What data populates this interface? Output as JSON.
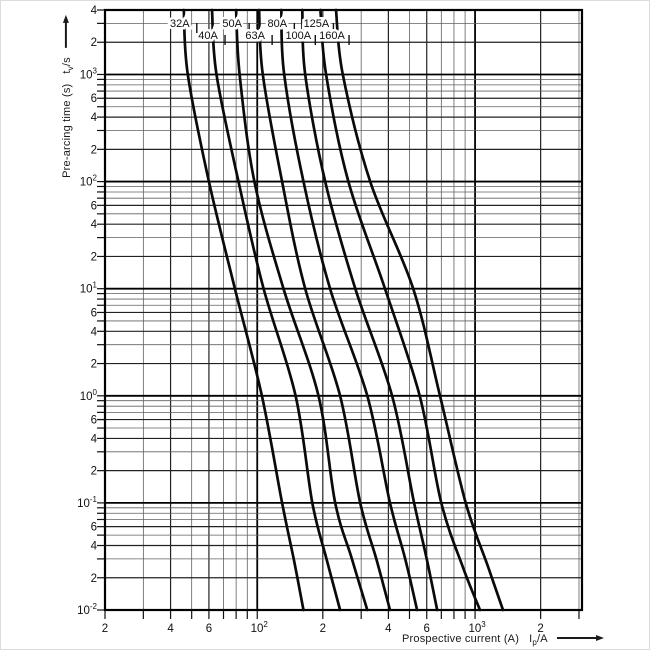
{
  "page": {
    "background": "#ffffff"
  },
  "chart_data": {
    "type": "line",
    "title": "",
    "scale": "log-log",
    "grid": {
      "major_color": "#000000",
      "mid_color": "#222222",
      "minor_color": "#606060"
    },
    "curve_color": "#0a0a0a",
    "x_axis": {
      "title": "Prospective current (A)",
      "symbol": "I",
      "symbol_sub": "p",
      "unit": "/A",
      "min": 20,
      "max": 3097,
      "ticks": [
        {
          "v": 20,
          "t": "2"
        },
        {
          "v": 40,
          "t": "4"
        },
        {
          "v": 60,
          "t": "6"
        },
        {
          "v": 100,
          "t": "10",
          "exp": "2"
        },
        {
          "v": 200,
          "t": "2"
        },
        {
          "v": 400,
          "t": "4"
        },
        {
          "v": 600,
          "t": "6"
        },
        {
          "v": 1000,
          "t": "10",
          "exp": "3"
        },
        {
          "v": 2000,
          "t": "2"
        }
      ]
    },
    "y_axis": {
      "title": "Pre-arcing time (s)",
      "symbol": "t",
      "symbol_sub": "v",
      "unit": "/s",
      "min": 0.01,
      "max": 4000,
      "ticks": [
        {
          "v": 4000,
          "t": "4"
        },
        {
          "v": 2000,
          "t": "2"
        },
        {
          "v": 1000,
          "t": "10",
          "exp": "3"
        },
        {
          "v": 600,
          "t": "6"
        },
        {
          "v": 400,
          "t": "4"
        },
        {
          "v": 200,
          "t": "2"
        },
        {
          "v": 100,
          "t": "10",
          "exp": "2"
        },
        {
          "v": 60,
          "t": "6"
        },
        {
          "v": 40,
          "t": "4"
        },
        {
          "v": 20,
          "t": "2"
        },
        {
          "v": 10,
          "t": "10",
          "exp": "1"
        },
        {
          "v": 6,
          "t": "6"
        },
        {
          "v": 4,
          "t": "4"
        },
        {
          "v": 2,
          "t": "2"
        },
        {
          "v": 1,
          "t": "10",
          "exp": "0"
        },
        {
          "v": 0.6,
          "t": "6"
        },
        {
          "v": 0.4,
          "t": "4"
        },
        {
          "v": 0.2,
          "t": "2"
        },
        {
          "v": 0.1,
          "t": "10",
          "exp": "-1"
        },
        {
          "v": 0.06,
          "t": "6"
        },
        {
          "v": 0.04,
          "t": "4"
        },
        {
          "v": 0.02,
          "t": "2"
        },
        {
          "v": 0.01,
          "t": "10",
          "exp": "-2"
        }
      ]
    },
    "series": [
      {
        "name": "32A",
        "points": [
          [
            46,
            4000
          ],
          [
            48,
            1000
          ],
          [
            60,
            100
          ],
          [
            79,
            10
          ],
          [
            105,
            1
          ],
          [
            130,
            0.1
          ],
          [
            147,
            0.03
          ],
          [
            163,
            0.01
          ]
        ]
      },
      {
        "name": "40A",
        "points": [
          [
            62,
            4000
          ],
          [
            65,
            1000
          ],
          [
            82,
            100
          ],
          [
            107,
            10
          ],
          [
            150,
            1
          ],
          [
            179,
            0.1
          ],
          [
            208,
            0.03
          ],
          [
            240,
            0.01
          ]
        ]
      },
      {
        "name": "50A",
        "points": [
          [
            80,
            4000
          ],
          [
            83,
            1000
          ],
          [
            97,
            100
          ],
          [
            132,
            10
          ],
          [
            191,
            1
          ],
          [
            228,
            0.1
          ],
          [
            272,
            0.03
          ],
          [
            320,
            0.01
          ]
        ]
      },
      {
        "name": "63A",
        "points": [
          [
            102,
            4000
          ],
          [
            106,
            1000
          ],
          [
            130,
            100
          ],
          [
            166,
            10
          ],
          [
            240,
            1
          ],
          [
            297,
            0.1
          ],
          [
            352,
            0.03
          ],
          [
            407,
            0.01
          ]
        ]
      },
      {
        "name": "80A",
        "points": [
          [
            129,
            4000
          ],
          [
            133,
            1000
          ],
          [
            163,
            100
          ],
          [
            216,
            10
          ],
          [
            320,
            1
          ],
          [
            407,
            0.1
          ],
          [
            478,
            0.03
          ],
          [
            542,
            0.01
          ]
        ]
      },
      {
        "name": "100A",
        "points": [
          [
            161,
            4000
          ],
          [
            166,
            1000
          ],
          [
            205,
            100
          ],
          [
            282,
            10
          ],
          [
            416,
            1
          ],
          [
            525,
            0.1
          ],
          [
            600,
            0.03
          ],
          [
            670,
            0.01
          ]
        ]
      },
      {
        "name": "125A",
        "points": [
          [
            195,
            4000
          ],
          [
            207,
            1000
          ],
          [
            262,
            100
          ],
          [
            386,
            10
          ],
          [
            557,
            1
          ],
          [
            700,
            0.1
          ],
          [
            880,
            0.025
          ],
          [
            1054,
            0.01
          ]
        ]
      },
      {
        "name": "160A",
        "points": [
          [
            230,
            4000
          ],
          [
            247,
            1000
          ],
          [
            330,
            100
          ],
          [
            520,
            10
          ],
          [
            690,
            1
          ],
          [
            906,
            0.1
          ],
          [
            1150,
            0.025
          ],
          [
            1343,
            0.01
          ]
        ]
      }
    ]
  }
}
